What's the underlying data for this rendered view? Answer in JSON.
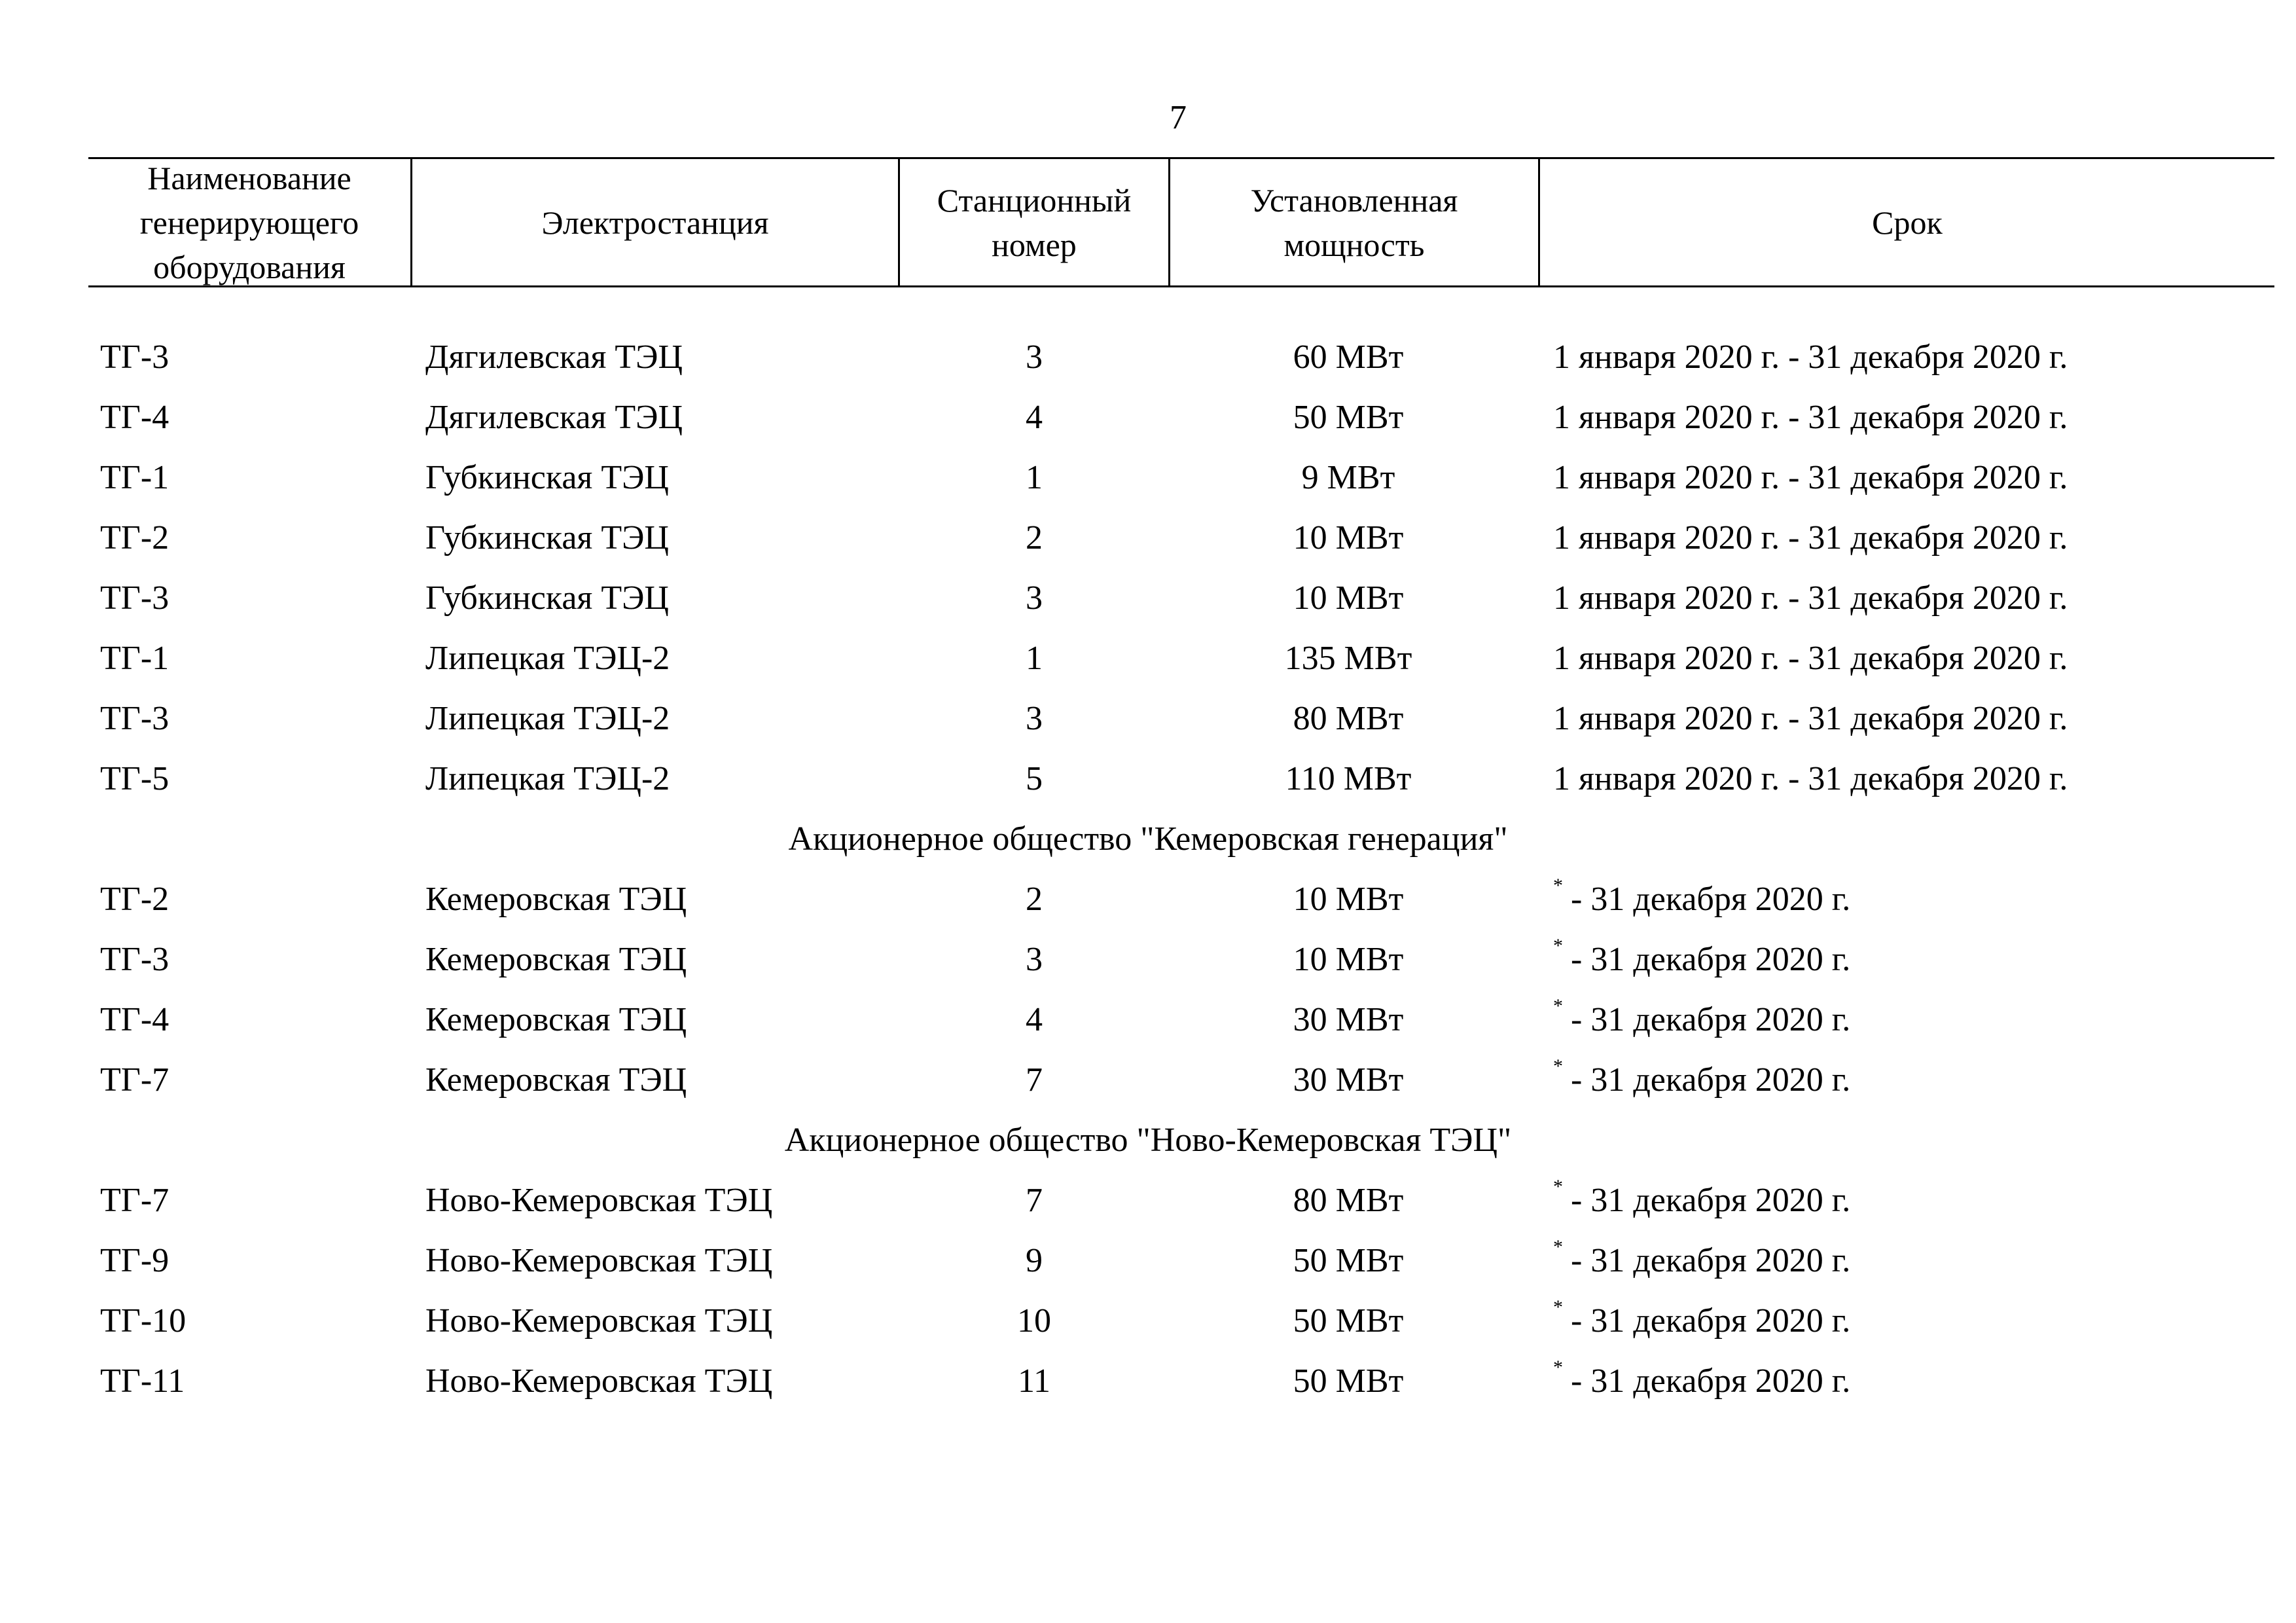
{
  "page_number": "7",
  "header": {
    "equipment": [
      "Наименование",
      "генерирующего",
      "оборудования"
    ],
    "plant": "Электростанция",
    "station_number": [
      "Станционный",
      "номер"
    ],
    "capacity": [
      "Установленная",
      "мощность"
    ],
    "term": "Срок"
  },
  "rows_a": [
    {
      "name": "ТГ-3",
      "plant": "Дягилевская ТЭЦ",
      "num": "3",
      "power": "60 МВт",
      "term": "1 января 2020 г. - 31 декабря 2020 г."
    },
    {
      "name": "ТГ-4",
      "plant": "Дягилевская ТЭЦ",
      "num": "4",
      "power": "50 МВт",
      "term": "1 января 2020 г. - 31 декабря 2020 г."
    },
    {
      "name": "ТГ-1",
      "plant": "Губкинская ТЭЦ",
      "num": "1",
      "power": "9 МВт",
      "term": "1 января 2020 г. - 31 декабря 2020 г."
    },
    {
      "name": "ТГ-2",
      "plant": "Губкинская ТЭЦ",
      "num": "2",
      "power": "10 МВт",
      "term": "1 января 2020 г. - 31 декабря 2020 г."
    },
    {
      "name": "ТГ-3",
      "plant": "Губкинская ТЭЦ",
      "num": "3",
      "power": "10 МВт",
      "term": "1 января 2020 г. - 31 декабря 2020 г."
    },
    {
      "name": "ТГ-1",
      "plant": "Липецкая ТЭЦ-2",
      "num": "1",
      "power": "135 МВт",
      "term": "1 января 2020 г. - 31 декабря 2020 г."
    },
    {
      "name": "ТГ-3",
      "plant": "Липецкая ТЭЦ-2",
      "num": "3",
      "power": "80 МВт",
      "term": "1 января 2020 г. - 31 декабря 2020 г."
    },
    {
      "name": "ТГ-5",
      "plant": "Липецкая ТЭЦ-2",
      "num": "5",
      "power": "110 МВт",
      "term": "1 января 2020 г. - 31 декабря 2020 г."
    }
  ],
  "group_b": "Акционерное общество \"Кемеровская генерация\"",
  "rows_b": [
    {
      "name": "ТГ-2",
      "plant": "Кемеровская ТЭЦ",
      "num": "2",
      "power": "10 МВт",
      "mark": "*",
      "term": "- 31 декабря 2020 г."
    },
    {
      "name": "ТГ-3",
      "plant": "Кемеровская ТЭЦ",
      "num": "3",
      "power": "10 МВт",
      "mark": "*",
      "term": "- 31 декабря 2020 г."
    },
    {
      "name": "ТГ-4",
      "plant": "Кемеровская ТЭЦ",
      "num": "4",
      "power": "30 МВт",
      "mark": "*",
      "term": "- 31 декабря 2020 г."
    },
    {
      "name": "ТГ-7",
      "plant": "Кемеровская ТЭЦ",
      "num": "7",
      "power": "30 МВт",
      "mark": "*",
      "term": "- 31 декабря 2020 г."
    }
  ],
  "group_c": "Акционерное общество \"Ново-Кемеровская ТЭЦ\"",
  "rows_c": [
    {
      "name": "ТГ-7",
      "plant": "Ново-Кемеровская ТЭЦ",
      "num": "7",
      "power": "80 МВт",
      "mark": "*",
      "term": "- 31 декабря 2020 г."
    },
    {
      "name": "ТГ-9",
      "plant": "Ново-Кемеровская ТЭЦ",
      "num": "9",
      "power": "50 МВт",
      "mark": "*",
      "term": "- 31 декабря 2020 г."
    },
    {
      "name": "ТГ-10",
      "plant": "Ново-Кемеровская ТЭЦ",
      "num": "10",
      "power": "50 МВт",
      "mark": "*",
      "term": "- 31 декабря 2020 г."
    },
    {
      "name": "ТГ-11",
      "plant": "Ново-Кемеровская ТЭЦ",
      "num": "11",
      "power": "50 МВт",
      "mark": "*",
      "term": "- 31 декабря 2020 г."
    }
  ]
}
